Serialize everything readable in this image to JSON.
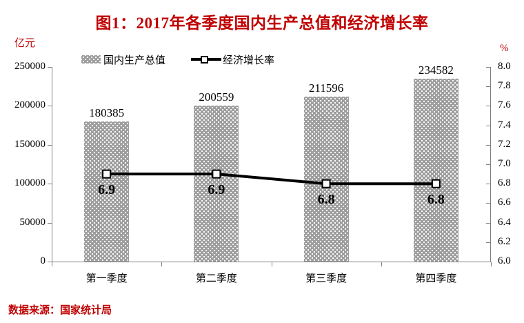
{
  "title": "图1：2017年各季度国内生产总值和经济增长率",
  "left_axis_unit": "亿元",
  "right_axis_unit": "%",
  "legend": {
    "gdp_label": "国内生产总值",
    "growth_label": "经济增长率"
  },
  "source_note": "数据来源：国家统计局",
  "colors": {
    "accent_red": "#c00000",
    "bar_fill": "#9e9e9e",
    "axis_line": "#7f7f7f",
    "growth_line": "#000000"
  },
  "chart_data": {
    "type": "bar",
    "title": "图1：2017年各季度国内生产总值和经济增长率",
    "categories": [
      "第一季度",
      "第二季度",
      "第三季度",
      "第四季度"
    ],
    "series": [
      {
        "name": "国内生产总值",
        "type": "bar",
        "axis": "left",
        "unit": "亿元",
        "values": [
          180385,
          200559,
          211596,
          234582
        ]
      },
      {
        "name": "经济增长率",
        "type": "line",
        "axis": "right",
        "unit": "%",
        "values": [
          6.9,
          6.9,
          6.8,
          6.8
        ]
      }
    ],
    "left_axis": {
      "unit": "亿元",
      "min": 0,
      "max": 250000,
      "step": 50000,
      "tick_labels": [
        "0",
        "50000",
        "100000",
        "150000",
        "200000",
        "250000"
      ]
    },
    "right_axis": {
      "unit": "%",
      "min": 6.0,
      "max": 8.0,
      "step": 0.2,
      "tick_labels": [
        "6.0",
        "6.2",
        "6.4",
        "6.6",
        "6.8",
        "7.0",
        "7.2",
        "7.4",
        "7.6",
        "7.8",
        "8.0"
      ]
    },
    "grid": false,
    "legend_position": "top",
    "source": "数据来源：国家统计局"
  }
}
